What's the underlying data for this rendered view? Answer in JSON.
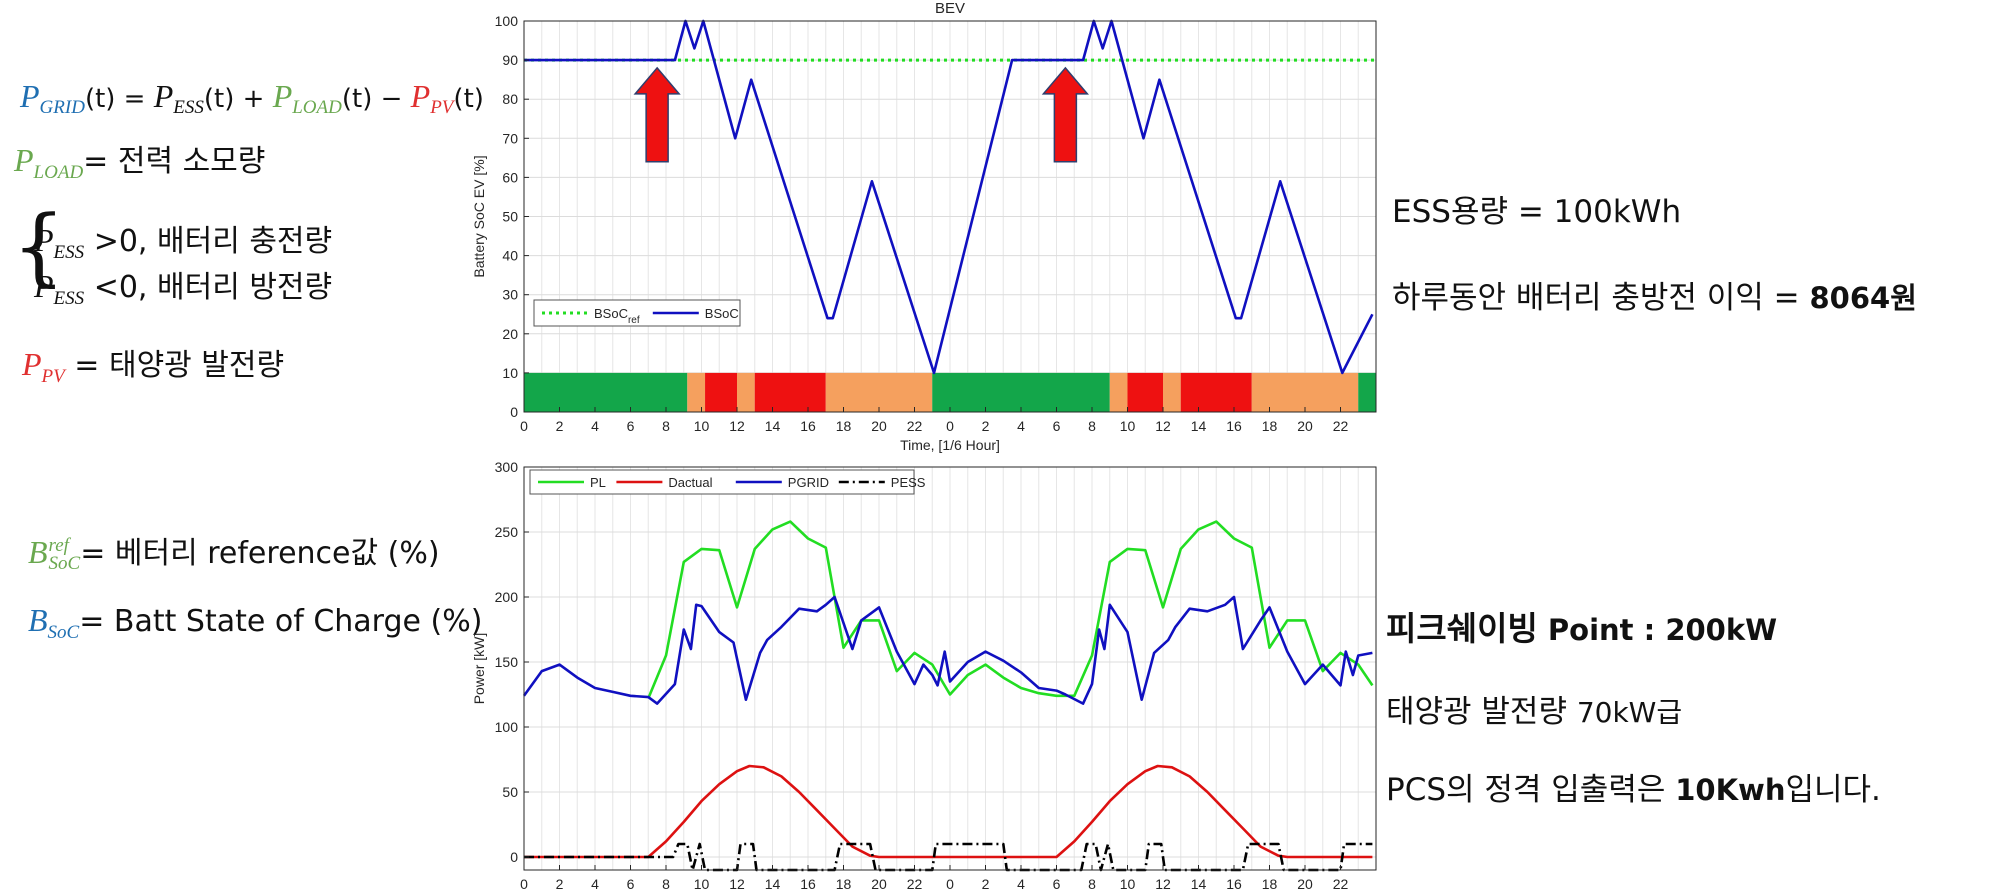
{
  "left_notes": {
    "grid_eq": {
      "p": "P",
      "grid": "GRID",
      "t": "(t) = ",
      "ess": "ESS",
      "plus": "(t) + ",
      "load": "LOAD",
      "minus": "(t) − ",
      "pv": "PV",
      "end": "(t)"
    },
    "load_def": {
      "p": "P",
      "sub": "LOAD",
      "text": "= 전력 소모량"
    },
    "ess_pos": {
      "p": "P",
      "sub": "ESS",
      "text": " >0, 배터리 충전량"
    },
    "ess_neg": {
      "p": "P",
      "sub": "ESS",
      "text": " <0, 배터리 방전량"
    },
    "pv_def": {
      "p": "P",
      "sub": "PV",
      "text": " = 태양광 발전량"
    },
    "bref_def": {
      "b": "B",
      "sub": "SoC",
      "sup": "ref",
      "text": "= 베터리 reference값 (%)"
    },
    "bsoc_def": {
      "b": "B",
      "sub": "SoC",
      "text": "= Batt State of Charge (%)"
    }
  },
  "right_notes": {
    "ess_capacity": "ESS용량 = 100kWh",
    "profit_label": "하루동안 배터리 충방전 이익 = ",
    "profit_value": "8064원",
    "peak_label": "피크쉐이빙",
    "peak_value": " Point : 200kW",
    "pv_label": "태양광 발전량 ",
    "pv_value": "70kW급",
    "pcs_label": "PCS의 정격 입출력은 ",
    "pcs_value": "10Kwh",
    "pcs_end": "입니다."
  },
  "chart_data": [
    {
      "type": "line",
      "title": "BEV",
      "xlabel": "Time, [1/6 Hour]",
      "ylabel": "Battery SoC EV [%]",
      "ylim": [
        0,
        100
      ],
      "yticks": [
        0,
        10,
        20,
        30,
        40,
        50,
        60,
        70,
        80,
        90,
        100
      ],
      "xticks_labels": [
        "0",
        "2",
        "4",
        "6",
        "8",
        "10",
        "12",
        "14",
        "16",
        "18",
        "20",
        "22",
        "0",
        "2",
        "4",
        "6",
        "8",
        "10",
        "12",
        "14",
        "16",
        "18",
        "20",
        "22"
      ],
      "grid": true,
      "legend_position": "bottom-left",
      "series": [
        {
          "name": "BSoC",
          "name_sub": "ref",
          "color": "#22dd22",
          "style": "dotted",
          "x": [
            0,
            48
          ],
          "y": [
            90,
            90
          ]
        },
        {
          "name": "BSoC",
          "color": "#1010c0",
          "style": "solid",
          "x": [
            0,
            8.5,
            9.1,
            9.6,
            10.1,
            11.9,
            12.8,
            17.1,
            17.4,
            19.6,
            23.1,
            27.5,
            31.5,
            32.1,
            32.6,
            33.1,
            34.9,
            35.8,
            40.1,
            40.4,
            42.6,
            46.1,
            47.8
          ],
          "y": [
            90,
            90,
            100,
            93,
            100,
            70,
            85,
            24,
            24,
            59,
            10,
            90,
            90,
            100,
            93,
            100,
            70,
            85,
            24,
            24,
            59,
            10,
            25
          ]
        }
      ],
      "annotations": [
        {
          "type": "arrow",
          "x": 7.5,
          "y_from": 64,
          "y_to": 88,
          "color": "#ee1111"
        },
        {
          "type": "arrow",
          "x": 30.5,
          "y_from": 64,
          "y_to": 88,
          "color": "#ee1111"
        }
      ],
      "tariff_band": {
        "y_range": [
          0,
          10
        ],
        "segments": [
          {
            "start": 0,
            "end": 9.2,
            "color": "#13a64a"
          },
          {
            "start": 9.2,
            "end": 10.2,
            "color": "#f5a05e"
          },
          {
            "start": 10.2,
            "end": 12,
            "color": "#ee1111"
          },
          {
            "start": 12,
            "end": 13,
            "color": "#f5a05e"
          },
          {
            "start": 13,
            "end": 17,
            "color": "#ee1111"
          },
          {
            "start": 17,
            "end": 23,
            "color": "#f5a05e"
          },
          {
            "start": 23,
            "end": 33,
            "color": "#13a64a"
          },
          {
            "start": 33,
            "end": 34,
            "color": "#f5a05e"
          },
          {
            "start": 34,
            "end": 36,
            "color": "#ee1111"
          },
          {
            "start": 36,
            "end": 37,
            "color": "#f5a05e"
          },
          {
            "start": 37,
            "end": 41,
            "color": "#ee1111"
          },
          {
            "start": 41,
            "end": 47,
            "color": "#f5a05e"
          },
          {
            "start": 47,
            "end": 48,
            "color": "#13a64a"
          }
        ]
      }
    },
    {
      "type": "line",
      "title": "",
      "xlabel": "Time, [1/6 Hour]",
      "ylabel": "Power [kW]",
      "ylim": [
        -10,
        300
      ],
      "yticks": [
        0,
        50,
        100,
        150,
        200,
        250,
        300
      ],
      "xticks_labels": [
        "0",
        "2",
        "4",
        "6",
        "8",
        "10",
        "12",
        "14",
        "16",
        "18",
        "20",
        "22",
        "0",
        "2",
        "4",
        "6",
        "8",
        "10",
        "12",
        "14",
        "16",
        "18",
        "20",
        "22"
      ],
      "grid": true,
      "legend_position": "top-left",
      "series": [
        {
          "name": "PL",
          "color": "#22dd22",
          "style": "solid",
          "x": [
            7,
            8,
            9,
            10,
            11,
            12,
            13,
            14,
            15,
            16,
            17,
            18,
            19,
            20,
            21,
            22,
            23,
            24,
            25,
            26,
            27,
            28,
            29,
            30,
            31,
            32,
            33,
            34,
            35,
            36,
            37,
            38,
            39,
            40,
            41,
            42,
            43,
            44,
            45,
            46,
            47,
            47.8
          ],
          "y": [
            122,
            155,
            227,
            237,
            236,
            192,
            237,
            252,
            258,
            245,
            238,
            161,
            182,
            182,
            143,
            157,
            148,
            125,
            140,
            148,
            138,
            130,
            126,
            124,
            124,
            155,
            227,
            237,
            236,
            192,
            237,
            252,
            258,
            245,
            238,
            161,
            182,
            182,
            143,
            157,
            148,
            132
          ]
        },
        {
          "name": "Dactual",
          "color": "#dd1111",
          "style": "solid",
          "x": [
            0,
            7,
            8,
            9,
            10,
            11,
            12,
            12.7,
            13.5,
            14.5,
            15.5,
            16.5,
            17.5,
            18.5,
            19.5,
            20,
            30,
            31,
            32,
            33,
            34,
            35,
            35.7,
            36.5,
            37.5,
            38.5,
            39.5,
            40.5,
            41.5,
            42.5,
            43,
            47.8
          ],
          "y": [
            0,
            0,
            12,
            27,
            43,
            56,
            66,
            70,
            69,
            62,
            50,
            36,
            22,
            8,
            1,
            0,
            0,
            12,
            27,
            43,
            56,
            66,
            70,
            69,
            62,
            50,
            36,
            22,
            8,
            1,
            0,
            0
          ]
        },
        {
          "name": "PGRID",
          "color": "#1010c0",
          "style": "solid",
          "x": [
            0,
            1,
            2,
            3,
            4,
            5,
            6,
            7,
            7.5,
            8.5,
            9,
            9.4,
            9.7,
            10,
            11,
            11.8,
            12.5,
            13.3,
            13.7,
            14.5,
            15.5,
            16.5,
            17,
            17.5,
            18.5,
            19,
            20,
            21,
            22,
            22.5,
            23,
            23.3,
            23.7,
            24,
            25,
            26,
            27,
            28,
            29,
            30,
            30.5,
            31.5,
            32,
            32.4,
            32.7,
            33,
            34,
            34.8,
            35.5,
            36.3,
            36.7,
            37.5,
            38.5,
            39.5,
            40,
            40.5,
            41.5,
            42,
            43,
            44,
            45,
            45.5,
            46,
            46.3,
            46.7,
            47,
            47.8
          ],
          "y": [
            124,
            143,
            148,
            138,
            130,
            127,
            124,
            123,
            118,
            133,
            175,
            160,
            194,
            193,
            173,
            165,
            121,
            157,
            167,
            177,
            191,
            189,
            194,
            200,
            160,
            182,
            192,
            158,
            133,
            148,
            140,
            132,
            158,
            135,
            150,
            158,
            151,
            142,
            130,
            128,
            125,
            118,
            133,
            175,
            160,
            194,
            173,
            121,
            157,
            167,
            177,
            191,
            189,
            194,
            200,
            160,
            182,
            192,
            158,
            133,
            148,
            140,
            132,
            158,
            140,
            155,
            157
          ]
        },
        {
          "name": "PESS",
          "color": "#000000",
          "style": "dashdot",
          "x": [
            0,
            8.4,
            8.7,
            9.2,
            9.5,
            9.9,
            10.2,
            12,
            12.2,
            12.9,
            13.1,
            17.5,
            17.8,
            19.5,
            19.8,
            23,
            23.2,
            27,
            27.2,
            31.4,
            31.7,
            32.2,
            32.5,
            32.9,
            33.2,
            35,
            35.2,
            35.9,
            36.1,
            40.5,
            40.8,
            42.5,
            42.8,
            46,
            46.2,
            47.8
          ],
          "y": [
            0,
            0,
            10,
            10,
            -10,
            10,
            -10,
            -10,
            10,
            10,
            -10,
            -10,
            10,
            10,
            -10,
            -10,
            10,
            10,
            -10,
            -10,
            10,
            10,
            -10,
            10,
            -10,
            -10,
            10,
            10,
            -10,
            -10,
            10,
            10,
            -10,
            -10,
            10,
            10
          ]
        }
      ]
    }
  ]
}
